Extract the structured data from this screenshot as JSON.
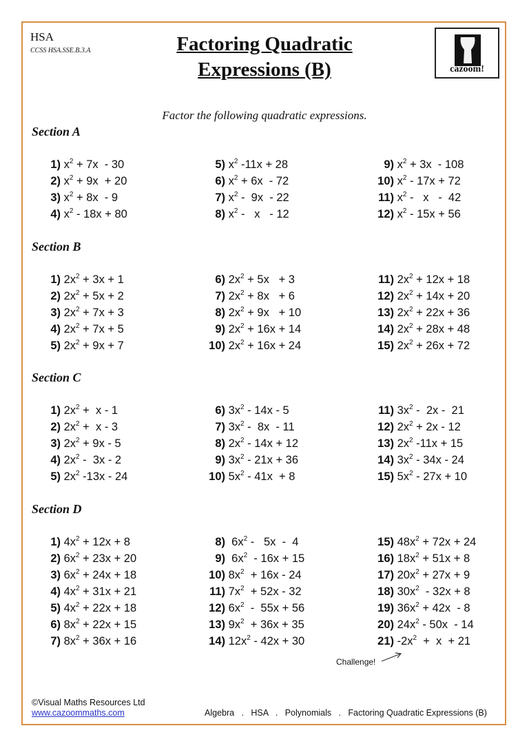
{
  "header": {
    "course": "HSA",
    "standard": "CCSS HSA.SSE.B.3.A",
    "title_line1": "Factoring Quadratic",
    "title_line2": "Expressions (B)",
    "logo_text": "cazoom!"
  },
  "instruction": "Factor the following quadratic expressions.",
  "sections": [
    {
      "title": "Section A",
      "columns": [
        [
          [
            "1)",
            "x",
            " + 7x  - 30"
          ],
          [
            "2)",
            "x",
            " + 9x  + 20"
          ],
          [
            "3)",
            "x",
            " + 8x  - 9"
          ],
          [
            "4)",
            "x",
            " - 18x + 80"
          ]
        ],
        [
          [
            "5)",
            "x",
            " -11x + 28"
          ],
          [
            "6)",
            "x",
            " + 6x  - 72"
          ],
          [
            "7)",
            "x",
            " -  9x  - 22"
          ],
          [
            "8)",
            "x",
            " -   x   - 12"
          ]
        ],
        [
          [
            "9)",
            "x",
            " + 3x  - 108"
          ],
          [
            "10)",
            "x",
            " - 17x + 72"
          ],
          [
            "11)",
            "x",
            " -   x   -  42"
          ],
          [
            "12)",
            "x",
            " - 15x + 56"
          ]
        ]
      ]
    },
    {
      "title": "Section B",
      "columns": [
        [
          [
            "1)",
            "2x",
            " + 3x + 1"
          ],
          [
            "2)",
            "2x",
            " + 5x + 2"
          ],
          [
            "3)",
            "2x",
            " + 7x + 3"
          ],
          [
            "4)",
            "2x",
            " + 7x + 5"
          ],
          [
            "5)",
            "2x",
            " + 9x + 7"
          ]
        ],
        [
          [
            "6)",
            "2x",
            " + 5x   + 3"
          ],
          [
            "7)",
            "2x",
            " + 8x   + 6"
          ],
          [
            "8)",
            "2x",
            " + 9x   + 10"
          ],
          [
            "9)",
            "2x",
            " + 16x + 14"
          ],
          [
            "10)",
            "2x",
            " + 16x + 24"
          ]
        ],
        [
          [
            "11)",
            "2x",
            " + 12x + 18"
          ],
          [
            "12)",
            "2x",
            " + 14x + 20"
          ],
          [
            "13)",
            "2x",
            " + 22x + 36"
          ],
          [
            "14)",
            "2x",
            " + 28x + 48"
          ],
          [
            "15)",
            "2x",
            " + 26x + 72"
          ]
        ]
      ]
    },
    {
      "title": "Section C",
      "columns": [
        [
          [
            "1)",
            "2x",
            " +  x - 1"
          ],
          [
            "2)",
            "2x",
            " +  x - 3"
          ],
          [
            "3)",
            "2x",
            " + 9x - 5"
          ],
          [
            "4)",
            "2x",
            " -  3x - 2"
          ],
          [
            "5)",
            "2x",
            " -13x - 24"
          ]
        ],
        [
          [
            "6)",
            "3x",
            " - 14x - 5"
          ],
          [
            "7)",
            "3x",
            " -  8x  - 11"
          ],
          [
            "8)",
            "2x",
            " - 14x + 12"
          ],
          [
            "9)",
            "3x",
            " - 21x + 36"
          ],
          [
            "10)",
            "5x",
            " - 41x  + 8"
          ]
        ],
        [
          [
            "11)",
            "3x",
            " -  2x -  21"
          ],
          [
            "12)",
            "2x",
            " + 2x - 12"
          ],
          [
            "13)",
            "2x",
            " -11x + 15"
          ],
          [
            "14)",
            "3x",
            " - 34x - 24"
          ],
          [
            "15)",
            "5x",
            " - 27x + 10"
          ]
        ]
      ]
    },
    {
      "title": "Section D",
      "columns": [
        [
          [
            "1)",
            "4x",
            " + 12x + 8"
          ],
          [
            "2)",
            "6x",
            " + 23x + 20"
          ],
          [
            "3)",
            "6x",
            " + 24x + 18"
          ],
          [
            "4)",
            "4x",
            " + 31x + 21"
          ],
          [
            "5)",
            "4x",
            " + 22x + 18"
          ],
          [
            "6)",
            "8x",
            " + 22x + 15"
          ],
          [
            "7)",
            "8x",
            " + 36x + 16"
          ]
        ],
        [
          [
            "8)",
            " 6x",
            " -   5x  -  4"
          ],
          [
            "9)",
            " 6x",
            "  - 16x + 15"
          ],
          [
            "10)",
            "8x",
            "  + 16x - 24"
          ],
          [
            "11)",
            "7x",
            "  + 52x - 32"
          ],
          [
            "12)",
            "6x",
            "  -  55x + 56"
          ],
          [
            "13)",
            "9x",
            "  + 36x + 35"
          ],
          [
            "14)",
            "12x",
            " - 42x + 30"
          ]
        ],
        [
          [
            "15)",
            "48x",
            " + 72x + 24"
          ],
          [
            "16)",
            "18x",
            " + 51x + 8"
          ],
          [
            "17)",
            "20x",
            " + 27x + 9"
          ],
          [
            "18)",
            "30x",
            "  - 32x + 8"
          ],
          [
            "19)",
            "36x",
            " + 42x  - 8"
          ],
          [
            "20)",
            "24x",
            " - 50x  - 14"
          ],
          [
            "21)",
            "-2x",
            "  +  x  + 21"
          ]
        ]
      ]
    }
  ],
  "challenge_label": "Challenge!",
  "footer": {
    "copyright": "©Visual Maths Resources Ltd",
    "url": "www.cazoommaths.com",
    "breadcrumb": "Algebra   .   HSA   .   Polynomials   .   Factoring Quadratic Expressions (B)"
  },
  "colors": {
    "border": "#d98d45",
    "link": "#2a35c9"
  }
}
